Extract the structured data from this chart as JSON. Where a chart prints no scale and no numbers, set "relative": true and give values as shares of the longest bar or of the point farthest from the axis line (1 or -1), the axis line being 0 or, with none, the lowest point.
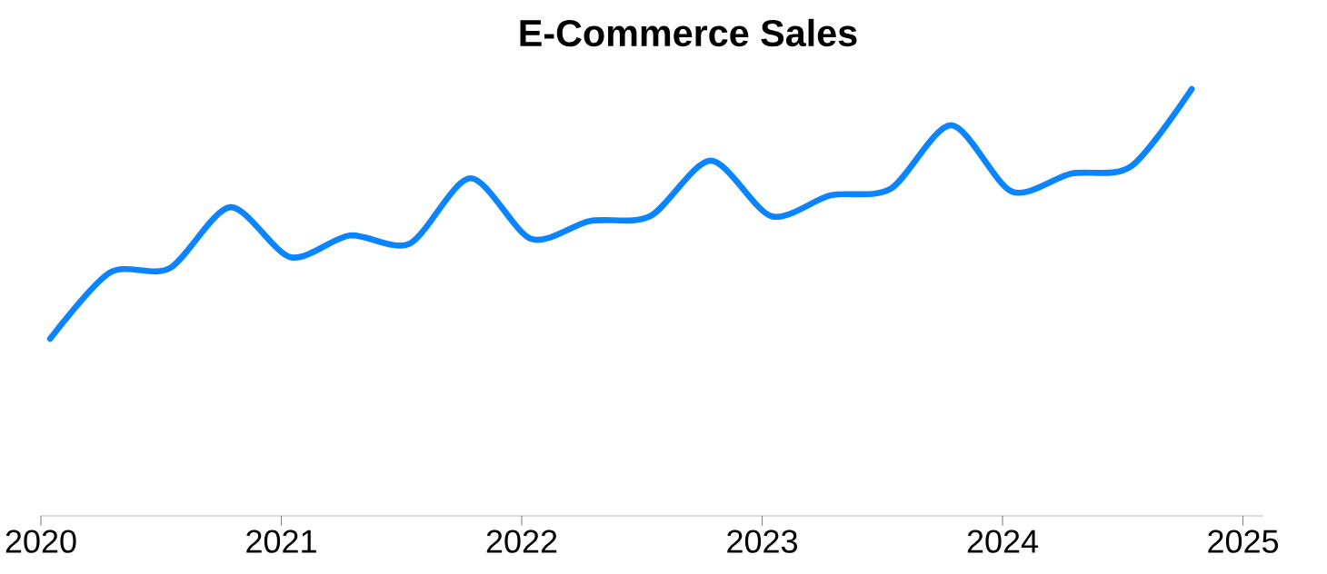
{
  "chart_data": {
    "type": "line",
    "title": "E-Commerce Sales",
    "relative": true,
    "color": "#0a84ff",
    "line_style": "solid",
    "marker": "none",
    "x": [
      "2020-01-15",
      "2020-04-15",
      "2020-07-15",
      "2020-10-15",
      "2021-01-15",
      "2021-04-15",
      "2021-07-15",
      "2021-10-15",
      "2022-01-15",
      "2022-04-15",
      "2022-07-15",
      "2022-10-15",
      "2023-01-15",
      "2023-04-15",
      "2023-07-15",
      "2023-10-15",
      "2024-01-15",
      "2024-04-15",
      "2024-07-15",
      "2024-10-15"
    ],
    "values": [
      0.415,
      0.57,
      0.58,
      0.723,
      0.606,
      0.657,
      0.638,
      0.791,
      0.649,
      0.691,
      0.702,
      0.832,
      0.702,
      0.751,
      0.766,
      0.915,
      0.76,
      0.802,
      0.819,
      1.0
    ],
    "xlim": [
      "2020",
      "2025-02"
    ],
    "xticks": [
      "2020",
      "2021",
      "2022",
      "2023",
      "2024",
      "2025"
    ]
  }
}
